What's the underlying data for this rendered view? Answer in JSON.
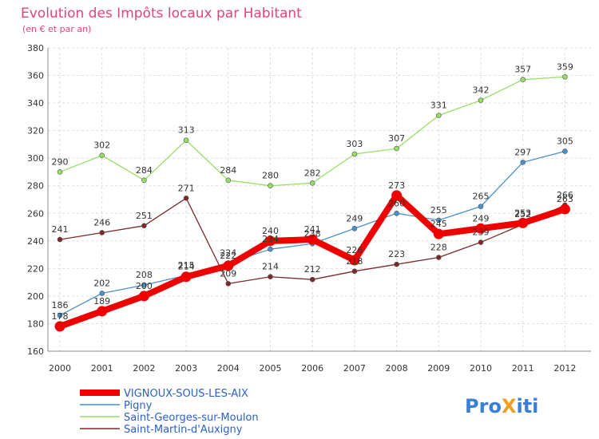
{
  "chart_data": {
    "type": "line",
    "title": "Evolution des Impôts locaux par Habitant",
    "subtitle": "(en € et par an)",
    "xlabel": "",
    "ylabel": "",
    "x": [
      "2000",
      "2001",
      "2002",
      "2003",
      "2004",
      "2005",
      "2006",
      "2007",
      "2008",
      "2009",
      "2010",
      "2011",
      "2012"
    ],
    "ylim": [
      160,
      380
    ],
    "yticks": [
      160,
      180,
      200,
      220,
      240,
      260,
      280,
      300,
      320,
      340,
      360,
      380
    ],
    "grid": true,
    "legend_position": "bottom-left",
    "series": [
      {
        "name": "VIGNOUX-SOUS-LES-AIX",
        "color": "#ee0000",
        "values": [
          178,
          189,
          200,
          214,
          222,
          240,
          241,
          226,
          273,
          245,
          249,
          253,
          263
        ]
      },
      {
        "name": "Pigny",
        "color": "#4a90c8",
        "values": [
          186,
          202,
          208,
          215,
          224,
          234,
          238,
          249,
          260,
          255,
          265,
          297,
          305
        ]
      },
      {
        "name": "Saint-Georges-sur-Moulon",
        "color": "#99dd66",
        "values": [
          290,
          302,
          284,
          313,
          284,
          280,
          282,
          303,
          307,
          331,
          342,
          357,
          359
        ]
      },
      {
        "name": "Saint-Martin-d'Auxigny",
        "color": "#7a2a2a",
        "values": [
          241,
          246,
          251,
          271,
          209,
          214,
          212,
          218,
          223,
          228,
          239,
          252,
          266
        ]
      }
    ]
  },
  "logo": {
    "text": "ProXiti",
    "letters": [
      "P",
      "r",
      "o",
      "X",
      "i",
      "t",
      "i"
    ],
    "colors": [
      "#3a7fd5",
      "#3a7fd5",
      "#3a7fd5",
      "#f0a020",
      "#3a7fd5",
      "#3a7fd5",
      "#3a7fd5"
    ]
  }
}
